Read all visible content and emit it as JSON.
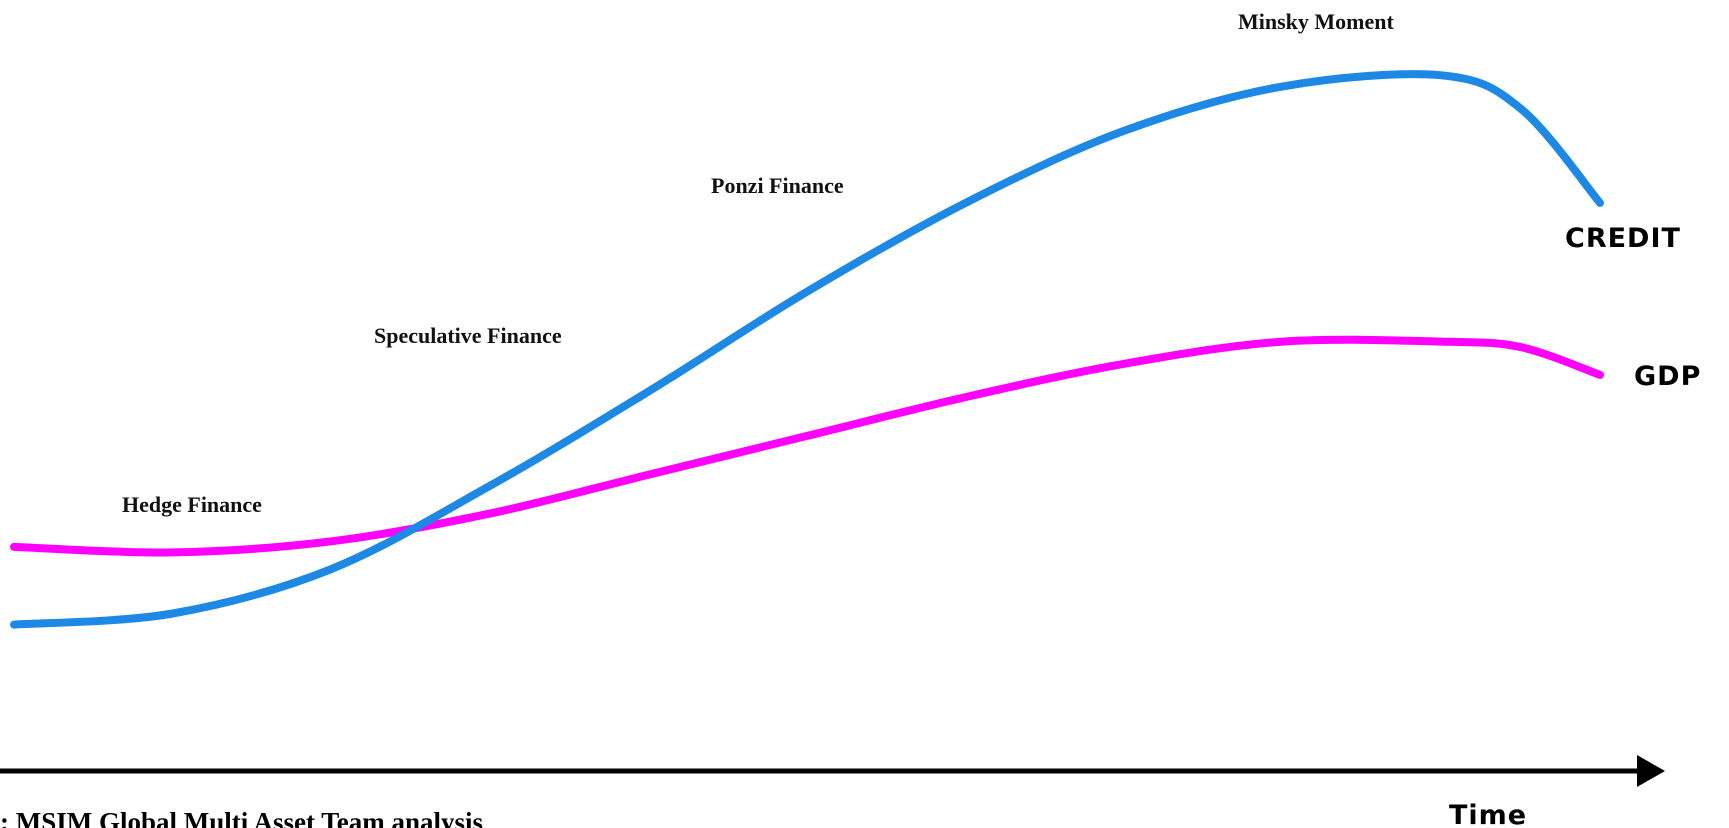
{
  "chart_data": {
    "type": "line",
    "title": "",
    "xlabel": "Time",
    "ylabel": "",
    "x": [
      0,
      10,
      20,
      30,
      40,
      50,
      60,
      70,
      80,
      90,
      95,
      100
    ],
    "series": [
      {
        "name": "CREDIT",
        "color": "#1e88e5",
        "values": [
          0,
          2,
          10,
          25,
          42,
          60,
          76,
          89,
          97,
          99,
          93,
          76
        ]
      },
      {
        "name": "GDP",
        "color": "#ff00ff",
        "values": [
          14,
          13,
          15,
          20,
          27,
          34,
          41,
          47,
          51,
          51,
          50,
          45
        ]
      }
    ],
    "ylim": [
      -30,
      105
    ],
    "phase_labels": [
      "Hedge Finance",
      "Speculative Finance",
      "Ponzi Finance",
      "Minsky Moment"
    ],
    "axis_arrow": true,
    "grid": false
  },
  "source_note": ": MSIM Global Multi Asset Team analysis"
}
